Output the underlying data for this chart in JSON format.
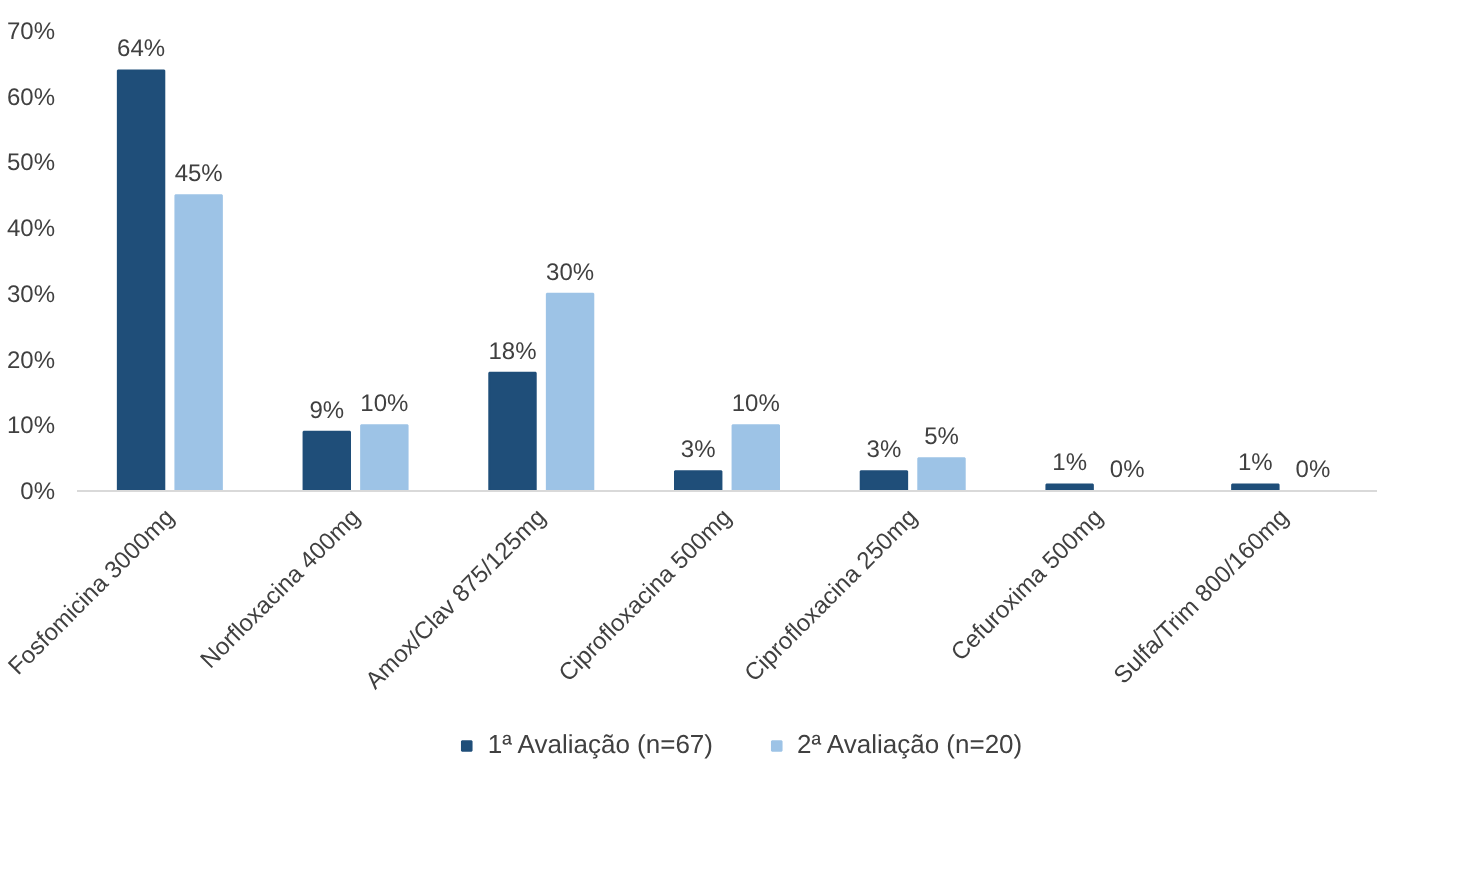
{
  "chart_data": {
    "type": "bar",
    "categories": [
      "Fosfomicina 3000mg",
      "Norfloxacina 400mg",
      "Amox/Clav 875/125mg",
      "Ciprofloxacina 500mg",
      "Ciprofloxacina 250mg",
      "Cefuroxima 500mg",
      "Sulfa/Trim 800/160mg"
    ],
    "series": [
      {
        "name": "1ª Avaliação (n=67)",
        "color": "#1f4e79",
        "values": [
          64,
          9,
          18,
          3,
          3,
          1,
          1
        ],
        "value_labels": [
          "64%",
          "9%",
          "18%",
          "3%",
          "3%",
          "1%",
          "1%"
        ]
      },
      {
        "name": "2ª Avaliação (n=20)",
        "color": "#9dc3e6",
        "values": [
          45,
          10,
          30,
          10,
          5,
          0,
          0
        ],
        "value_labels": [
          "45%",
          "10%",
          "30%",
          "10%",
          "5%",
          "0%",
          "0%"
        ]
      }
    ],
    "ylim": [
      0,
      70
    ],
    "yticks": [
      {
        "value": 0,
        "label": "0%"
      },
      {
        "value": 10,
        "label": "10%"
      },
      {
        "value": 20,
        "label": "20%"
      },
      {
        "value": 30,
        "label": "30%"
      },
      {
        "value": 40,
        "label": "40%"
      },
      {
        "value": 50,
        "label": "50%"
      },
      {
        "value": 60,
        "label": "60%"
      },
      {
        "value": 70,
        "label": "70%"
      }
    ],
    "grid": false,
    "legend": "bottom"
  }
}
